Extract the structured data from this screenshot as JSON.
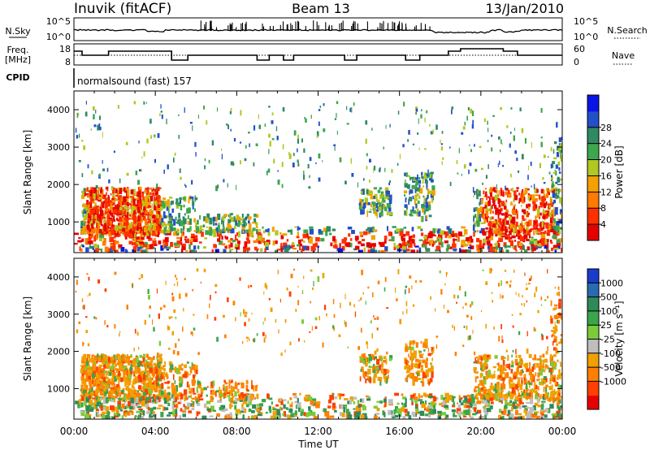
{
  "header": {
    "station": "Inuvik (fitACF)",
    "beam": "Beam 13",
    "date": "13/Jan/2010"
  },
  "meta_panels": {
    "nsky_label": "N.Sky",
    "nsearch_label": "N.Search",
    "nsky_ticks": [
      "10^5",
      "10^0"
    ],
    "nsearch_ticks": [
      "10^5",
      "10^0"
    ],
    "freq_label_1": "Freq.",
    "freq_label_2": "[MHz]",
    "freq_ticks": [
      "18",
      "8"
    ],
    "nave_label": "Nave",
    "nave_ticks": [
      "60",
      "0"
    ],
    "cpid_label": "CPID",
    "cpid_text": "normalsound (fast) 157"
  },
  "chart_data": [
    {
      "type": "heatmap",
      "panel": "power",
      "xlabel": "",
      "ylabel": "Slant Range [km]",
      "x_ticks": [
        "00:00",
        "04:00",
        "08:00",
        "12:00",
        "16:00",
        "20:00",
        "00:00"
      ],
      "y_ticks": [
        1000,
        2000,
        3000,
        4000
      ],
      "ylim": [
        180,
        4500
      ],
      "colorbar": {
        "label": "Power [dB]",
        "ticks": [
          "4",
          "8",
          "12",
          "16",
          "20",
          "24",
          "28"
        ],
        "colors": [
          "#0a14e6",
          "#2250c8",
          "#2f8a62",
          "#3ea64c",
          "#b0c820",
          "#f4a000",
          "#ff7a00",
          "#ff3000",
          "#e60000"
        ]
      }
    },
    {
      "type": "heatmap",
      "panel": "velocity",
      "xlabel": "Time UT",
      "ylabel": "Slant Range [km]",
      "x_ticks": [
        "00:00",
        "04:00",
        "08:00",
        "12:00",
        "16:00",
        "20:00",
        "00:00"
      ],
      "y_ticks": [
        1000,
        2000,
        3000,
        4000
      ],
      "ylim": [
        180,
        4500
      ],
      "colorbar": {
        "label": "Velocity [m s⁻¹]",
        "ticks": [
          "1000",
          "500",
          "100",
          "25",
          "-25",
          "-100",
          "-500",
          "-1000"
        ],
        "colors": [
          "#1a3ccc",
          "#2a6ab0",
          "#2f8a5a",
          "#3aa64a",
          "#7ccc3a",
          "#bebebe",
          "#f0a000",
          "#ff8000",
          "#ff4000",
          "#e60000"
        ]
      }
    }
  ]
}
